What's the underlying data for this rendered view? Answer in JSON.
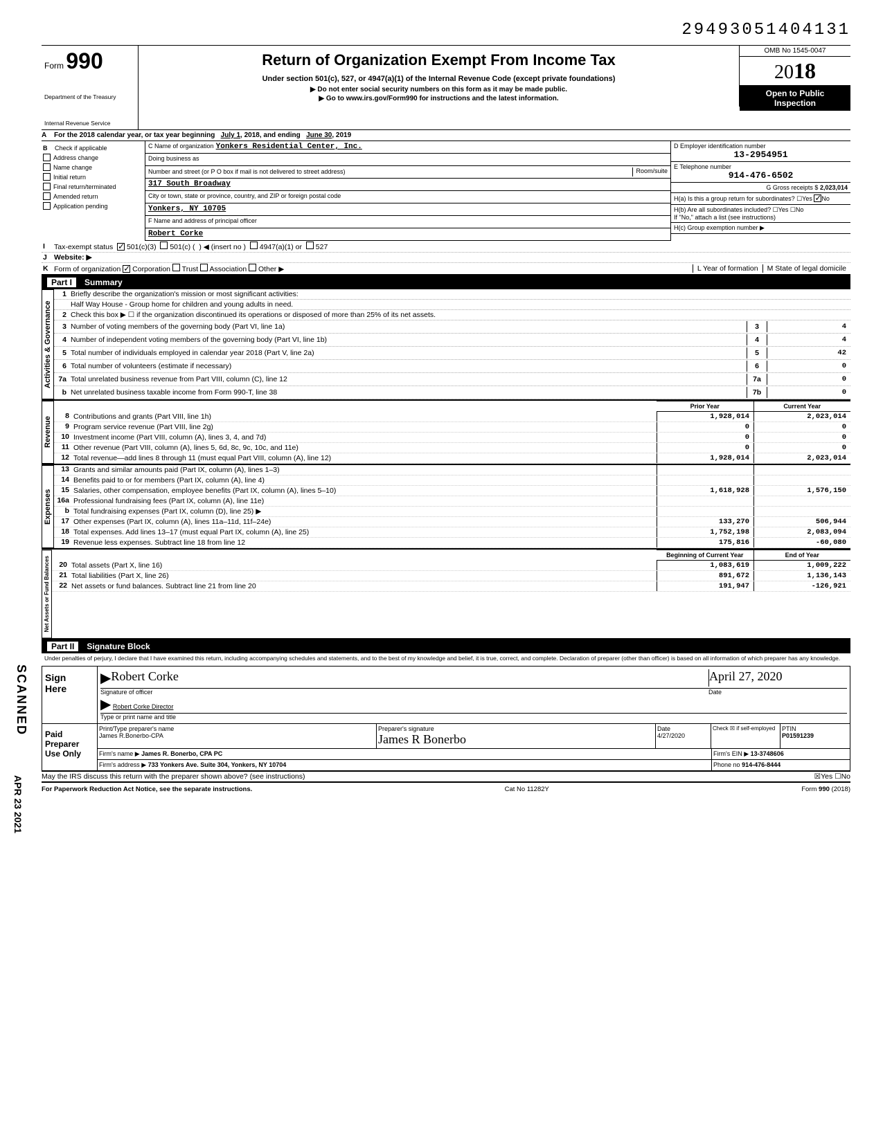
{
  "doc_number": "29493051404131",
  "form": {
    "number": "990",
    "title": "Return of Organization Exempt From Income Tax",
    "subtitle": "Under section 501(c), 527, or 4947(a)(1) of the Internal Revenue Code (except private foundations)",
    "instr1": "▶ Do not enter social security numbers on this form as it may be made public.",
    "instr2": "▶ Go to www.irs.gov/Form990 for instructions and the latest information.",
    "dept": "Department of the Treasury",
    "irs": "Internal Revenue Service"
  },
  "omb": {
    "number": "OMB No 1545-0047",
    "year_prefix": "20",
    "year_bold": "18",
    "open": "Open to Public",
    "inspect": "Inspection"
  },
  "row_a": {
    "text": "For the 2018 calendar year, or tax year beginning",
    "begin": "July 1",
    "mid": ", 2018, and ending",
    "end": "June 30",
    "year": ", 2019"
  },
  "col_b": {
    "label": "B",
    "items": [
      "Check if applicable",
      "Address change",
      "Name change",
      "Initial return",
      "Final return/terminated",
      "Amended return",
      "Application pending"
    ]
  },
  "org": {
    "c_label": "C Name of organization",
    "name": "Yonkers Residential Center, Inc.",
    "dba_label": "Doing business as",
    "addr_label": "Number and street (or P O box if mail is not delivered to street address)",
    "room_label": "Room/suite",
    "addr": "317 South Broadway",
    "city_label": "City or town, state or province, country, and ZIP or foreign postal code",
    "city": "Yonkers, NY 10705",
    "f_label": "F Name and address of principal officer",
    "officer": "Robert Corke"
  },
  "col_d": {
    "d_label": "D Employer identification number",
    "ein": "13-2954951",
    "e_label": "E Telephone number",
    "phone": "914-476-6502",
    "g_label": "G Gross receipts $",
    "gross": "2,023,014",
    "ha": "H(a) Is this a group return for subordinates?",
    "ha_yes": "Yes",
    "ha_no": "No",
    "hb": "H(b) Are all subordinates included?",
    "hb_note": "If \"No,\" attach a list (see instructions)",
    "hc": "H(c) Group exemption number ▶"
  },
  "row_i": {
    "label": "Tax-exempt status",
    "opts": [
      "501(c)(3)",
      "501(c) (",
      "◀ (insert no )",
      "4947(a)(1) or",
      "527"
    ]
  },
  "row_j": {
    "label": "Website: ▶"
  },
  "row_k": {
    "label": "Form of organization",
    "opts": [
      "Corporation",
      "Trust",
      "Association",
      "Other ▶"
    ],
    "l": "L Year of formation",
    "m": "M State of legal domicile"
  },
  "part1": {
    "tag": "Part I",
    "title": "Summary"
  },
  "gov": {
    "label": "Activities & Governance",
    "lines": [
      {
        "n": "1",
        "t": "Briefly describe the organization's mission or most significant activities:"
      },
      {
        "n": "",
        "t": "Half Way House - Group home for children and young adults in need."
      },
      {
        "n": "2",
        "t": "Check this box ▶ ☐ if the organization discontinued its operations or disposed of more than 25% of its net assets."
      },
      {
        "n": "3",
        "t": "Number of voting members of the governing body (Part VI, line 1a)",
        "box": "3",
        "v": "4"
      },
      {
        "n": "4",
        "t": "Number of independent voting members of the governing body (Part VI, line 1b)",
        "box": "4",
        "v": "4"
      },
      {
        "n": "5",
        "t": "Total number of individuals employed in calendar year 2018 (Part V, line 2a)",
        "box": "5",
        "v": "42"
      },
      {
        "n": "6",
        "t": "Total number of volunteers (estimate if necessary)",
        "box": "6",
        "v": "0"
      },
      {
        "n": "7a",
        "t": "Total unrelated business revenue from Part VIII, column (C), line 12",
        "box": "7a",
        "v": "0"
      },
      {
        "n": "b",
        "t": "Net unrelated business taxable income from Form 990-T, line 38",
        "box": "7b",
        "v": "0"
      }
    ]
  },
  "rev": {
    "label": "Revenue",
    "hdr_prior": "Prior Year",
    "hdr_curr": "Current Year",
    "lines": [
      {
        "n": "8",
        "t": "Contributions and grants (Part VIII, line 1h)",
        "v1": "1,928,014",
        "v2": "2,023,014"
      },
      {
        "n": "9",
        "t": "Program service revenue (Part VIII, line 2g)",
        "v1": "0",
        "v2": "0"
      },
      {
        "n": "10",
        "t": "Investment income (Part VIII, column (A), lines 3, 4, and 7d)",
        "v1": "0",
        "v2": "0"
      },
      {
        "n": "11",
        "t": "Other revenue (Part VIII, column (A), lines 5, 6d, 8c, 9c, 10c, and 11e)",
        "v1": "0",
        "v2": "0"
      },
      {
        "n": "12",
        "t": "Total revenue—add lines 8 through 11 (must equal Part VIII, column (A), line 12)",
        "v1": "1,928,014",
        "v2": "2,023,014"
      }
    ]
  },
  "exp": {
    "label": "Expenses",
    "lines": [
      {
        "n": "13",
        "t": "Grants and similar amounts paid (Part IX, column (A), lines 1–3)",
        "v1": "",
        "v2": ""
      },
      {
        "n": "14",
        "t": "Benefits paid to or for members (Part IX, column (A), line 4)",
        "v1": "",
        "v2": ""
      },
      {
        "n": "15",
        "t": "Salaries, other compensation, employee benefits (Part IX, column (A), lines 5–10)",
        "v1": "1,618,928",
        "v2": "1,576,150"
      },
      {
        "n": "16a",
        "t": "Professional fundraising fees (Part IX, column (A), line 11e)",
        "v1": "",
        "v2": ""
      },
      {
        "n": "b",
        "t": "Total fundraising expenses (Part IX, column (D), line 25) ▶",
        "v1": "",
        "v2": ""
      },
      {
        "n": "17",
        "t": "Other expenses (Part IX, column (A), lines 11a–11d, 11f–24e)",
        "v1": "133,270",
        "v2": "506,944"
      },
      {
        "n": "18",
        "t": "Total expenses. Add lines 13–17 (must equal Part IX, column (A), line 25)",
        "v1": "1,752,198",
        "v2": "2,083,094"
      },
      {
        "n": "19",
        "t": "Revenue less expenses. Subtract line 18 from line 12",
        "v1": "175,816",
        "v2": "-60,080"
      }
    ]
  },
  "net": {
    "label": "Net Assets or\nFund Balances",
    "hdr_begin": "Beginning of Current Year",
    "hdr_end": "End of Year",
    "lines": [
      {
        "n": "20",
        "t": "Total assets (Part X, line 16)",
        "v1": "1,083,619",
        "v2": "1,009,222"
      },
      {
        "n": "21",
        "t": "Total liabilities (Part X, line 26)",
        "v1": "891,672",
        "v2": "1,136,143"
      },
      {
        "n": "22",
        "t": "Net assets or fund balances. Subtract line 21 from line 20",
        "v1": "191,947",
        "v2": "-126,921"
      }
    ]
  },
  "part2": {
    "tag": "Part II",
    "title": "Signature Block"
  },
  "perjury": "Under penalties of perjury, I declare that I have examined this return, including accompanying schedules and statements, and to the best of my knowledge and belief, it is true, correct, and complete. Declaration of preparer (other than officer) is based on all information of which preparer has any knowledge.",
  "sign": {
    "here": "Sign\nHere",
    "sig_label": "Signature of officer",
    "date_label": "Date",
    "name": "Robert Corke  Director",
    "name_label": "Type or print name and title",
    "sig_date": "April 27, 2020"
  },
  "prep": {
    "here": "Paid\nPreparer\nUse Only",
    "pt_label": "Print/Type preparer's name",
    "pt_name": "James R.Bonerbo-CPA",
    "sig_label": "Preparer's signature",
    "date_label": "Date",
    "date": "4/27/2020",
    "chk": "Check ☒ if self-employed",
    "ptin_label": "PTIN",
    "ptin": "P01591239",
    "firm_label": "Firm's name ▶",
    "firm": "James R. Bonerbo, CPA PC",
    "ein_label": "Firm's EIN ▶",
    "ein": "13-3748606",
    "addr_label": "Firm's address ▶",
    "addr": "733 Yonkers Ave. Suite 304, Yonkers, NY 10704",
    "phone_label": "Phone no",
    "phone": "914-476-8444"
  },
  "discuss": {
    "q": "May the IRS discuss this return with the preparer shown above? (see instructions)",
    "yes": "Yes",
    "no": "No"
  },
  "footer": {
    "left": "For Paperwork Reduction Act Notice, see the separate instructions.",
    "mid": "Cat No 11282Y",
    "right": "Form 990 (2018)"
  },
  "scanned": "SCANNED",
  "stamp": "APR 23 2021",
  "colors": {
    "bg": "#ffffff",
    "ink": "#000000",
    "dotted": "#aaaaaa"
  }
}
